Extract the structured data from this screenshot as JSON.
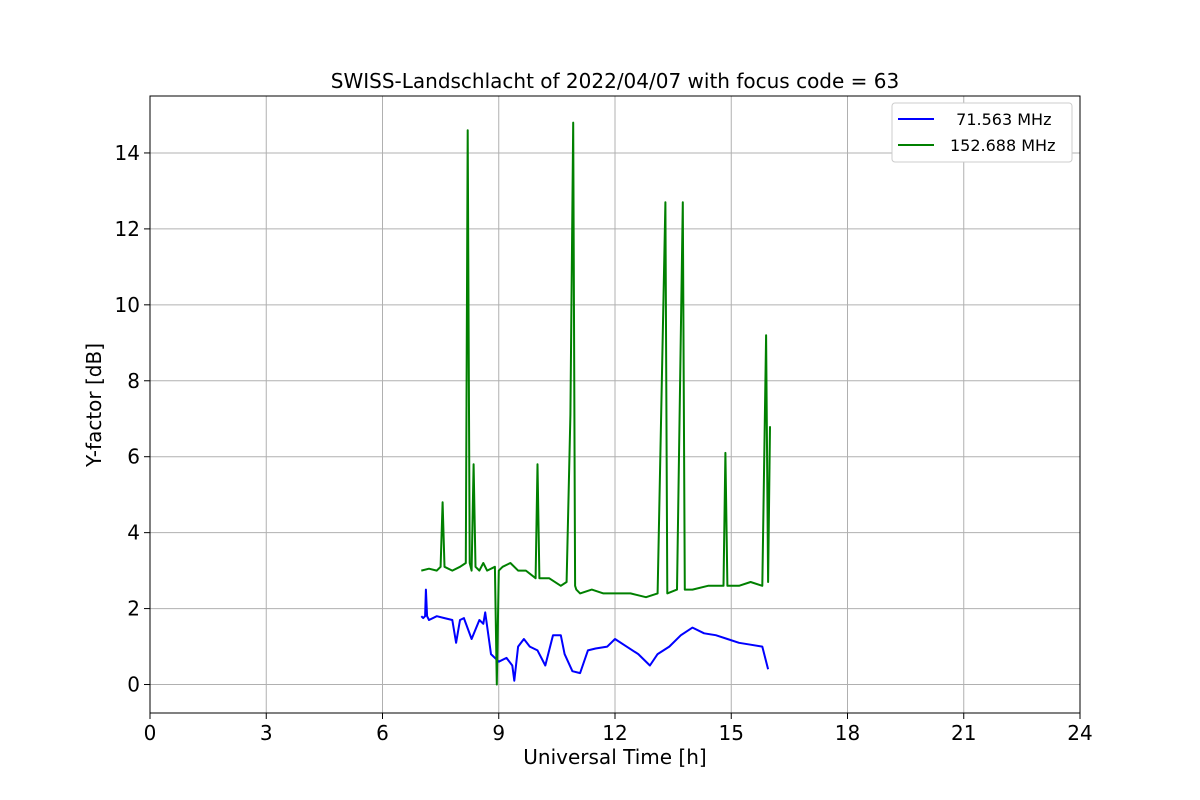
{
  "chart_data": {
    "type": "line",
    "title": "SWISS-Landschlacht of 2022/04/07 with focus code = 63",
    "xlabel": "Universal Time [h]",
    "ylabel": "Y-factor [dB]",
    "xlim": [
      0,
      24
    ],
    "ylim": [
      -0.75,
      15.5
    ],
    "xticks": [
      0,
      3,
      6,
      9,
      12,
      15,
      18,
      21,
      24
    ],
    "yticks": [
      0,
      2,
      4,
      6,
      8,
      10,
      12,
      14
    ],
    "grid": true,
    "legend_position": "top-right",
    "series": [
      {
        "name": "  71.563 MHz",
        "color": "#0000ff",
        "x": [
          7.0,
          7.05,
          7.1,
          7.12,
          7.15,
          7.2,
          7.4,
          7.6,
          7.8,
          7.9,
          8.0,
          8.1,
          8.3,
          8.5,
          8.6,
          8.65,
          8.8,
          9.0,
          9.2,
          9.35,
          9.4,
          9.5,
          9.65,
          9.8,
          10.0,
          10.2,
          10.4,
          10.6,
          10.7,
          10.9,
          11.1,
          11.3,
          11.5,
          11.8,
          12.0,
          12.3,
          12.6,
          12.9,
          13.1,
          13.4,
          13.7,
          14.0,
          14.3,
          14.6,
          14.9,
          15.2,
          15.5,
          15.8,
          15.95
        ],
        "y": [
          1.8,
          1.75,
          1.8,
          2.5,
          1.8,
          1.7,
          1.8,
          1.75,
          1.7,
          1.1,
          1.7,
          1.75,
          1.2,
          1.7,
          1.6,
          1.9,
          0.8,
          0.6,
          0.7,
          0.5,
          0.1,
          1.0,
          1.2,
          1.0,
          0.9,
          0.5,
          1.3,
          1.3,
          0.8,
          0.35,
          0.3,
          0.9,
          0.95,
          1.0,
          1.2,
          1.0,
          0.8,
          0.5,
          0.8,
          1.0,
          1.3,
          1.5,
          1.35,
          1.3,
          1.2,
          1.1,
          1.05,
          1.0,
          0.4
        ]
      },
      {
        "name": "152.688 MHz",
        "color": "#008000",
        "x": [
          7.0,
          7.2,
          7.4,
          7.5,
          7.55,
          7.6,
          7.8,
          8.0,
          8.15,
          8.2,
          8.25,
          8.3,
          8.35,
          8.4,
          8.5,
          8.6,
          8.7,
          8.9,
          8.95,
          9.0,
          9.1,
          9.3,
          9.5,
          9.7,
          9.95,
          10.0,
          10.05,
          10.3,
          10.6,
          10.75,
          10.85,
          10.92,
          10.97,
          11.0,
          11.1,
          11.4,
          11.7,
          12.0,
          12.4,
          12.8,
          13.1,
          13.3,
          13.35,
          13.6,
          13.75,
          13.8,
          14.0,
          14.4,
          14.8,
          14.85,
          14.9,
          15.2,
          15.5,
          15.8,
          15.9,
          15.95,
          16.0
        ],
        "y": [
          3.0,
          3.05,
          3.0,
          3.1,
          4.8,
          3.1,
          3.0,
          3.1,
          3.2,
          14.6,
          3.2,
          3.0,
          5.8,
          3.1,
          3.0,
          3.2,
          3.0,
          3.1,
          0.0,
          3.0,
          3.1,
          3.2,
          3.0,
          3.0,
          2.8,
          5.8,
          2.8,
          2.8,
          2.6,
          2.7,
          7.1,
          14.8,
          2.6,
          2.5,
          2.4,
          2.5,
          2.4,
          2.4,
          2.4,
          2.3,
          2.4,
          12.7,
          2.4,
          2.5,
          12.7,
          2.5,
          2.5,
          2.6,
          2.6,
          6.1,
          2.6,
          2.6,
          2.7,
          2.6,
          9.2,
          2.7,
          6.8
        ]
      }
    ]
  }
}
